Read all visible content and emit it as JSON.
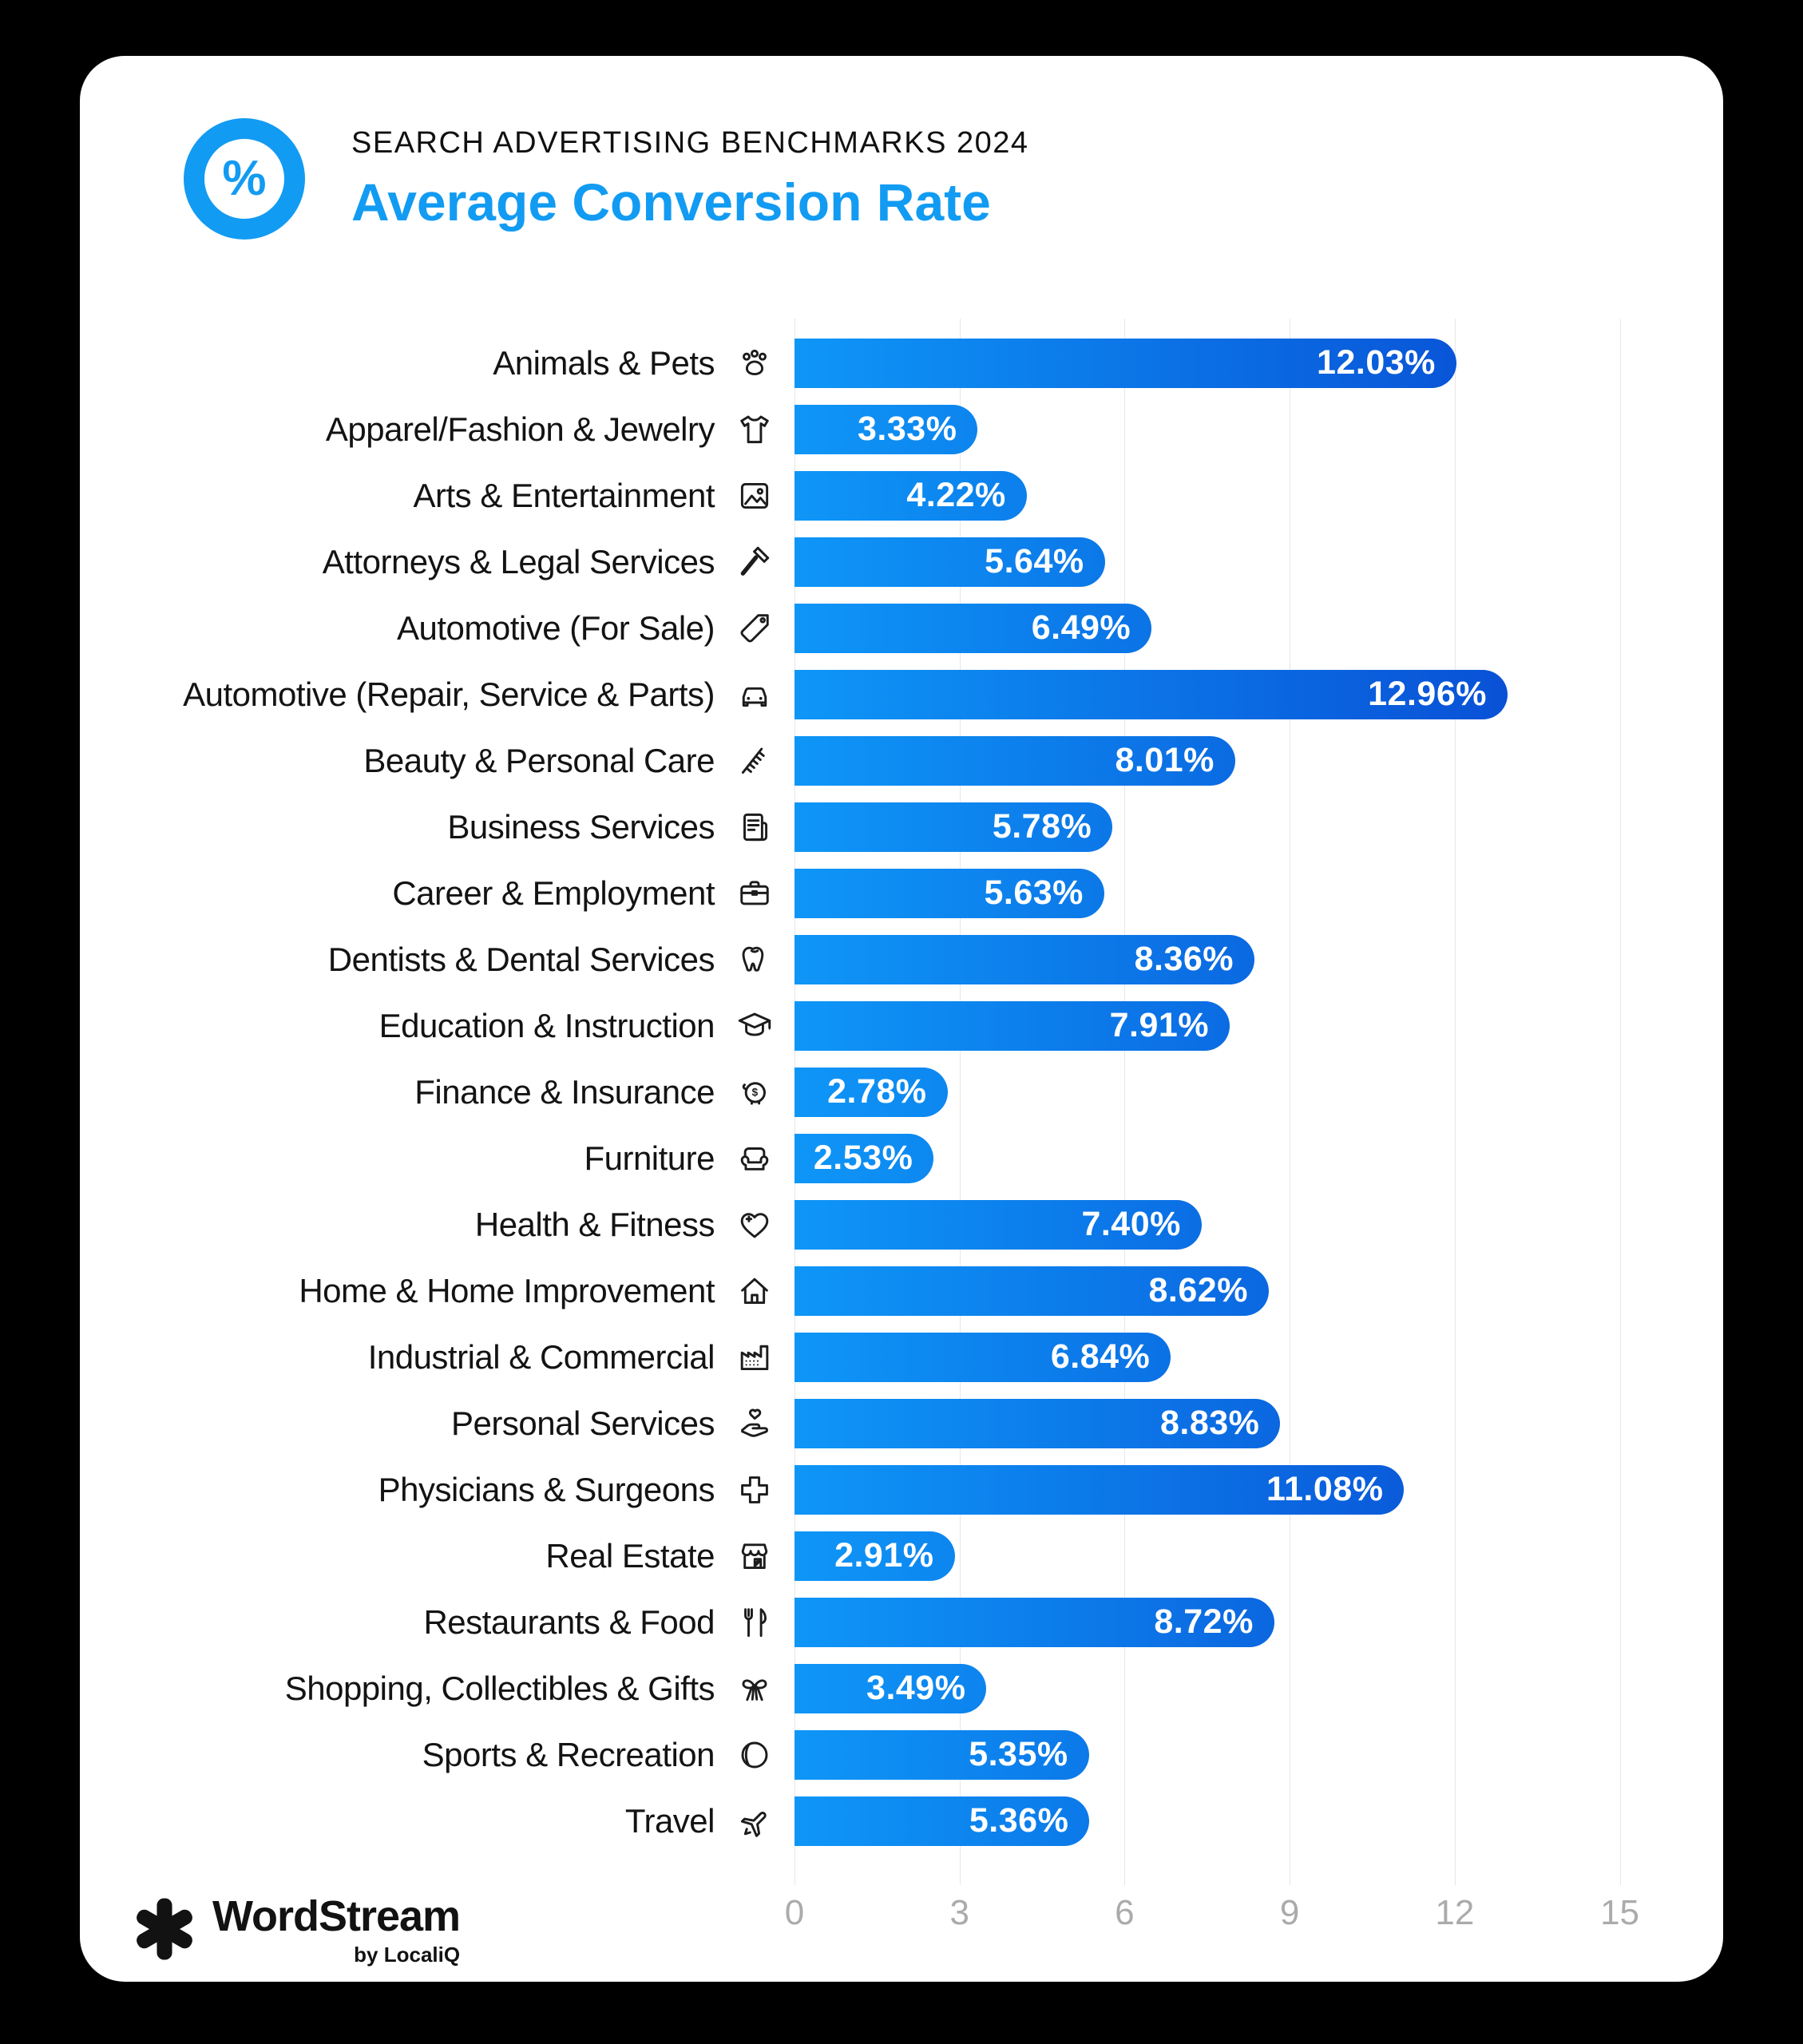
{
  "header": {
    "badge_symbol": "%",
    "kicker": "SEARCH ADVERTISING BENCHMARKS 2024",
    "title": "Average Conversion Rate"
  },
  "chart_data": {
    "type": "bar",
    "orientation": "horizontal",
    "title": "Average Conversion Rate",
    "categories": [
      "Animals & Pets",
      "Apparel/Fashion & Jewelry",
      "Arts & Entertainment",
      "Attorneys & Legal Services",
      "Automotive (For Sale)",
      "Automotive (Repair, Service & Parts)",
      "Beauty & Personal Care",
      "Business Services",
      "Career & Employment",
      "Dentists & Dental Services",
      "Education & Instruction",
      "Finance & Insurance",
      "Furniture",
      "Health & Fitness",
      "Home & Home Improvement",
      "Industrial & Commercial",
      "Personal Services",
      "Physicians & Surgeons",
      "Real Estate",
      "Restaurants & Food",
      "Shopping, Collectibles & Gifts",
      "Sports & Recreation",
      "Travel"
    ],
    "values": [
      12.03,
      3.33,
      4.22,
      5.64,
      6.49,
      12.96,
      8.01,
      5.78,
      5.63,
      8.36,
      7.91,
      2.78,
      2.53,
      7.4,
      8.62,
      6.84,
      8.83,
      11.08,
      2.91,
      8.72,
      3.49,
      5.35,
      5.36
    ],
    "value_labels": [
      "12.03%",
      "3.33%",
      "4.22%",
      "5.64%",
      "6.49%",
      "12.96%",
      "8.01%",
      "5.78%",
      "5.63%",
      "8.36%",
      "7.91%",
      "2.78%",
      "2.53%",
      "7.40%",
      "8.62%",
      "6.84%",
      "8.83%",
      "11.08%",
      "2.91%",
      "8.72%",
      "3.49%",
      "5.35%",
      "5.36%"
    ],
    "icons": [
      "paw-icon",
      "tshirt-icon",
      "picture-icon",
      "gavel-icon",
      "price-tag-icon",
      "car-icon",
      "comb-icon",
      "news-document-icon",
      "briefcase-icon",
      "tooth-icon",
      "graduation-cap-icon",
      "piggy-bank-icon",
      "armchair-icon",
      "heart-plus-icon",
      "house-icon",
      "factory-icon",
      "hand-heart-icon",
      "medical-cross-icon",
      "storefront-icon",
      "cutlery-icon",
      "gift-bow-icon",
      "ball-icon",
      "airplane-icon"
    ],
    "xlabel": "",
    "ylabel": "",
    "xlim": [
      0,
      15.5
    ],
    "x_ticks": [
      0,
      3,
      6,
      9,
      12,
      15
    ],
    "grid": true,
    "legend": "none",
    "bar_color_start": "#0E96F7",
    "bar_color_end": "#0843CF",
    "grid_color": "#E7E7E7",
    "axis_text_color": "#ABABAB",
    "label_position": "inside-end"
  },
  "colors": {
    "accent": "#129BF2",
    "page_background": "#000000",
    "card_background": "#FFFFFF",
    "category_text": "#131313",
    "value_text": "#FFFFFF"
  },
  "footer": {
    "brand": "WordStream",
    "byline": "by LocaliQ"
  }
}
